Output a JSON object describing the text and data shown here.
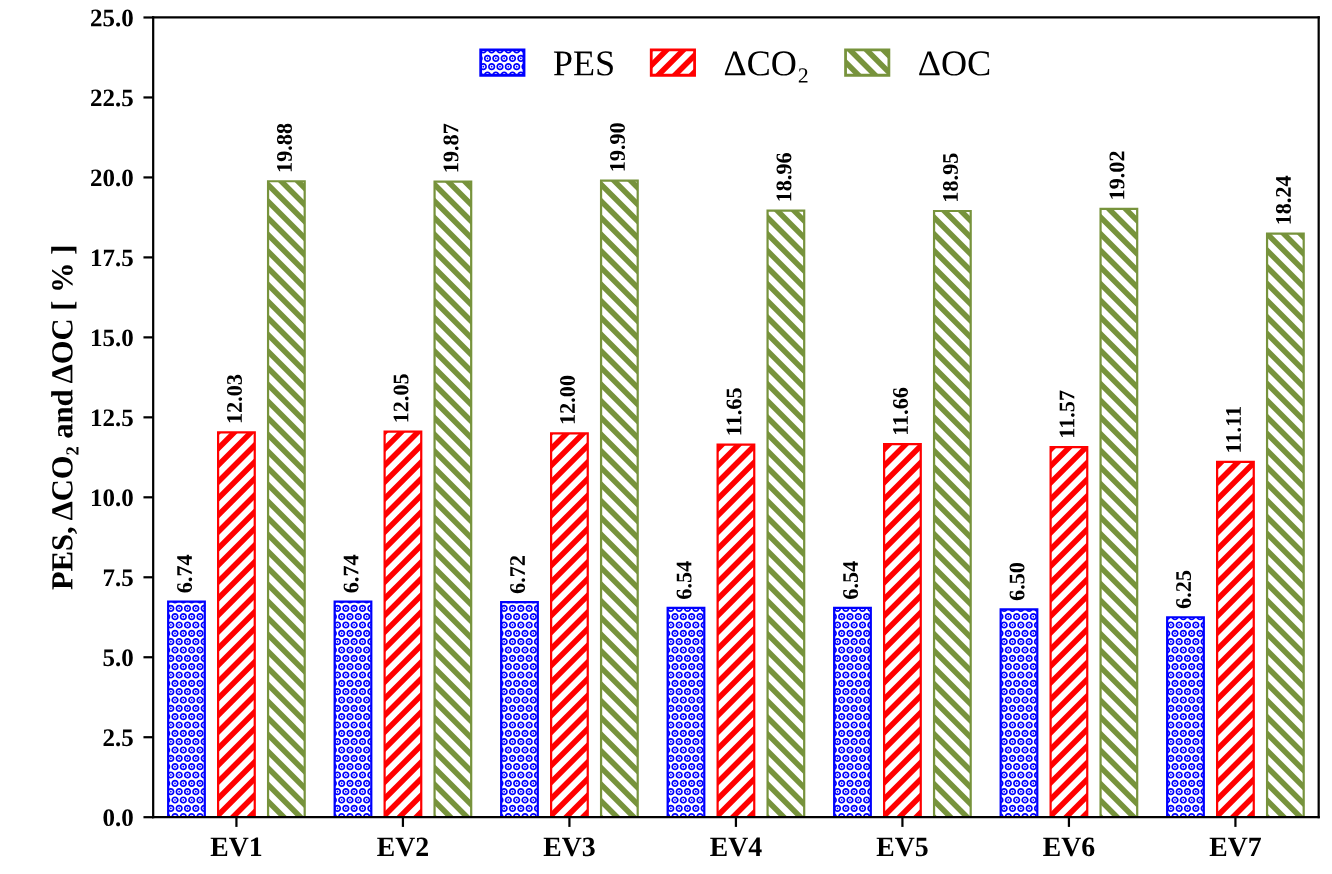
{
  "chart_data": {
    "type": "bar",
    "categories": [
      "EV1",
      "EV2",
      "EV3",
      "EV4",
      "EV5",
      "EV6",
      "EV7"
    ],
    "series": [
      {
        "name": "PES",
        "color": "#0000ff",
        "values": [
          6.74,
          6.74,
          6.72,
          6.54,
          6.54,
          6.5,
          6.25
        ]
      },
      {
        "name": "ΔCO₂",
        "color": "#ff0000",
        "values": [
          12.03,
          12.05,
          12.0,
          11.65,
          11.66,
          11.57,
          11.11
        ]
      },
      {
        "name": "ΔOC",
        "color": "#77933c",
        "values": [
          19.88,
          19.87,
          19.9,
          18.96,
          18.95,
          19.02,
          18.24
        ]
      }
    ],
    "ylabel": "PES, ΔCO₂ and ΔOC [ % ]",
    "ylim": [
      0,
      25
    ],
    "yticks": [
      {
        "value": 0,
        "label": "0.0"
      },
      {
        "value": 2.5,
        "label": "2.5"
      },
      {
        "value": 5,
        "label": "5.0"
      },
      {
        "value": 7.5,
        "label": "7.5"
      },
      {
        "value": 10,
        "label": "10.0"
      },
      {
        "value": 12.5,
        "label": "12.5"
      },
      {
        "value": 15,
        "label": "15.0"
      },
      {
        "value": 17.5,
        "label": "17.5"
      },
      {
        "value": 20,
        "label": "20.0"
      },
      {
        "value": 22.5,
        "label": "22.5"
      },
      {
        "value": 25,
        "label": "25.0"
      }
    ],
    "value_labels": [
      [
        "6.74",
        "6.74",
        "6.72",
        "6.54",
        "6.54",
        "6.50",
        "6.25"
      ],
      [
        "12.03",
        "12.05",
        "12.00",
        "11.65",
        "11.66",
        "11.57",
        "11.11"
      ],
      [
        "19.88",
        "19.87",
        "19.90",
        "18.96",
        "18.95",
        "19.02",
        "18.24"
      ]
    ],
    "grid": false,
    "legend": "top"
  }
}
